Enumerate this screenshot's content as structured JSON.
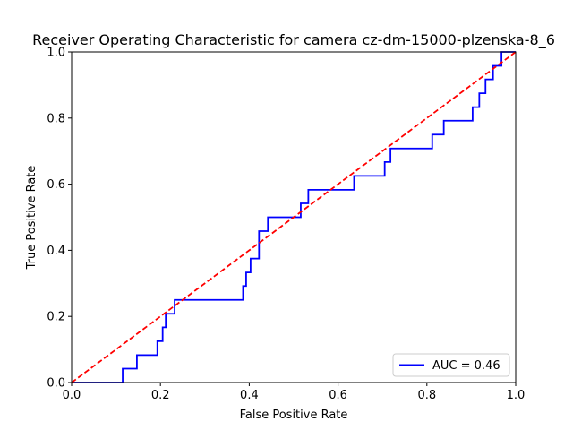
{
  "chart_data": {
    "type": "line",
    "title": "Receiver Operating Characteristic for camera cz-dm-15000-plzenska-8_6",
    "xlabel": "False Positive Rate",
    "ylabel": "True Positive Rate",
    "xlim": [
      0,
      1
    ],
    "ylim": [
      0,
      1
    ],
    "xticks": [
      "0.0",
      "0.2",
      "0.4",
      "0.6",
      "0.8",
      "1.0"
    ],
    "yticks": [
      "0.0",
      "0.2",
      "0.4",
      "0.6",
      "0.8",
      "1.0"
    ],
    "grid": false,
    "legend": {
      "placement": "lower-right",
      "entries": [
        "AUC = 0.46"
      ]
    },
    "series": [
      {
        "name": "AUC = 0.46",
        "color": "#0000ff",
        "style": "solid",
        "x": [
          0.0,
          0.115,
          0.115,
          0.147,
          0.147,
          0.193,
          0.193,
          0.205,
          0.205,
          0.212,
          0.212,
          0.232,
          0.232,
          0.386,
          0.386,
          0.393,
          0.393,
          0.403,
          0.403,
          0.422,
          0.422,
          0.442,
          0.442,
          0.516,
          0.516,
          0.533,
          0.533,
          0.636,
          0.636,
          0.705,
          0.705,
          0.718,
          0.718,
          0.812,
          0.812,
          0.838,
          0.838,
          0.903,
          0.903,
          0.918,
          0.918,
          0.932,
          0.932,
          0.949,
          0.949,
          0.968,
          0.968,
          1.0
        ],
        "y": [
          0.0,
          0.0,
          0.042,
          0.042,
          0.083,
          0.083,
          0.125,
          0.125,
          0.167,
          0.167,
          0.208,
          0.208,
          0.25,
          0.25,
          0.292,
          0.292,
          0.333,
          0.333,
          0.375,
          0.375,
          0.458,
          0.458,
          0.5,
          0.5,
          0.542,
          0.542,
          0.583,
          0.583,
          0.625,
          0.625,
          0.667,
          0.667,
          0.708,
          0.708,
          0.75,
          0.75,
          0.792,
          0.792,
          0.833,
          0.833,
          0.875,
          0.875,
          0.917,
          0.917,
          0.958,
          0.958,
          1.0,
          1.0
        ]
      },
      {
        "name": "",
        "color": "#ff0000",
        "style": "dashed",
        "x": [
          0,
          1
        ],
        "y": [
          0,
          1
        ]
      }
    ]
  }
}
